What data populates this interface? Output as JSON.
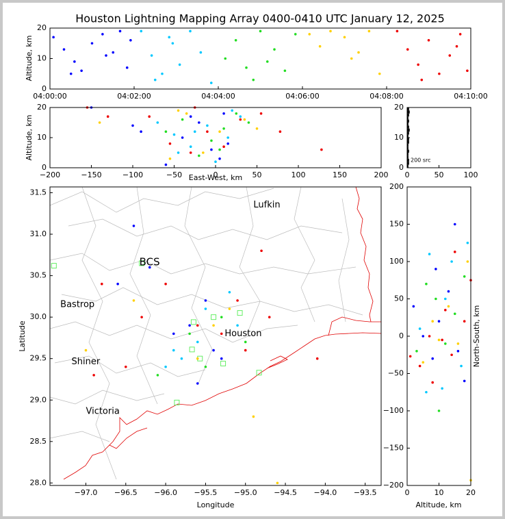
{
  "title": "Houston Lightning Mapping Array 0400-0410 UTC January 12, 2025",
  "chart_data": [
    {
      "type": "scatter",
      "ylabel": "Altitude, km",
      "xlim": [
        0,
        600
      ],
      "ylim": [
        0,
        20
      ],
      "xticks": [
        {
          "value": 0,
          "label": "04:00:00"
        },
        {
          "value": 120,
          "label": "04:02:00"
        },
        {
          "value": 240,
          "label": "04:04:00"
        },
        {
          "value": 360,
          "label": "04:06:00"
        },
        {
          "value": 480,
          "label": "04:08:00"
        },
        {
          "value": 600,
          "label": "04:10:00"
        }
      ],
      "yticks": [
        0,
        10,
        20
      ],
      "series": [
        {
          "color": "#0000ff",
          "x": [
            5,
            20,
            35,
            45,
            60,
            75,
            90,
            100,
            110,
            115,
            30,
            80
          ],
          "values": [
            17,
            13,
            9,
            6,
            15,
            18,
            12,
            19,
            7,
            16,
            5,
            11
          ]
        },
        {
          "color": "#00c8ff",
          "x": [
            130,
            145,
            160,
            175,
            185,
            200,
            215,
            230,
            150,
            170
          ],
          "values": [
            19,
            11,
            5,
            15,
            8,
            19,
            12,
            2,
            3,
            17
          ]
        },
        {
          "color": "#22dd22",
          "x": [
            250,
            265,
            280,
            300,
            320,
            335,
            350,
            290,
            310
          ],
          "values": [
            10,
            16,
            7,
            19,
            13,
            6,
            18,
            3,
            9
          ]
        },
        {
          "color": "#ffd000",
          "x": [
            370,
            385,
            400,
            420,
            440,
            455,
            470,
            430
          ],
          "values": [
            18,
            14,
            19,
            17,
            12,
            19,
            5,
            10
          ]
        },
        {
          "color": "#ee0000",
          "x": [
            495,
            510,
            525,
            540,
            555,
            570,
            585,
            595,
            530,
            580
          ],
          "values": [
            19,
            13,
            8,
            16,
            5,
            11,
            18,
            6,
            3,
            14
          ]
        }
      ]
    },
    {
      "type": "scatter",
      "xlabel": "East-West, km",
      "ylabel": "Altitude, km",
      "xlim": [
        -200,
        200
      ],
      "ylim": [
        0,
        20
      ],
      "xticks": [
        {
          "value": -200,
          "label": "−200"
        },
        {
          "value": -150,
          "label": "−150"
        },
        {
          "value": -100,
          "label": "−100"
        },
        {
          "value": -50,
          "label": "−50"
        },
        0,
        50,
        100,
        150,
        200
      ],
      "yticks": [
        0,
        10,
        20
      ],
      "series": [
        {
          "color": "#0000ff",
          "x": [
            -100,
            -90,
            -60,
            -40,
            -20,
            -5,
            10,
            -150,
            -30,
            5,
            15
          ],
          "values": [
            14,
            12,
            1,
            10,
            15,
            6,
            18,
            20,
            17,
            3,
            8
          ]
        },
        {
          "color": "#00c8ff",
          "x": [
            -50,
            -30,
            -10,
            0,
            20,
            30,
            -70,
            -45,
            15,
            -25
          ],
          "values": [
            11,
            7,
            14,
            2,
            19,
            17,
            15,
            5,
            10,
            12
          ]
        },
        {
          "color": "#22dd22",
          "x": [
            -40,
            -20,
            -5,
            10,
            25,
            -60,
            40,
            5
          ],
          "values": [
            16,
            4,
            9,
            13,
            18,
            12,
            15,
            6
          ]
        },
        {
          "color": "#ffd000",
          "x": [
            -45,
            -35,
            -15,
            5,
            35,
            50,
            -140,
            -55
          ],
          "values": [
            19,
            18,
            5,
            12,
            16,
            13,
            15,
            3
          ]
        },
        {
          "color": "#ee0000",
          "x": [
            -155,
            -130,
            -80,
            -55,
            -30,
            -10,
            10,
            30,
            55,
            78,
            128,
            -25
          ],
          "values": [
            20,
            17,
            17,
            8,
            5,
            12,
            7,
            16,
            18,
            12,
            6,
            20
          ]
        }
      ]
    },
    {
      "type": "histogram",
      "annotation": "200 src",
      "xlim": [
        0,
        100
      ],
      "ylim": [
        0,
        20
      ],
      "xticks": [
        0,
        50,
        100
      ],
      "yticks": [
        0,
        10,
        20
      ],
      "bins": [
        0,
        1,
        2,
        3,
        4,
        5,
        6,
        7,
        8,
        9,
        10,
        11,
        12,
        13,
        14,
        15,
        16,
        17,
        18,
        19,
        20
      ],
      "values": [
        2,
        3,
        3,
        2,
        2,
        3,
        2,
        2,
        3,
        3,
        2,
        3,
        4,
        3,
        2,
        3,
        2,
        3,
        4,
        3
      ],
      "color": "#000000"
    },
    {
      "type": "map",
      "xlabel": "Longitude",
      "ylabel": "Latitude",
      "xlim": [
        -97.45,
        -93.3
      ],
      "ylim": [
        27.97,
        31.57
      ],
      "xticks": [
        {
          "value": -97,
          "label": "−97.0"
        },
        {
          "value": -96.5,
          "label": "−96.5"
        },
        {
          "value": -96,
          "label": "−96.0"
        },
        {
          "value": -95.5,
          "label": "−95.5"
        },
        {
          "value": -95,
          "label": "−95.0"
        },
        {
          "value": -94.5,
          "label": "−94.5"
        },
        {
          "value": -94,
          "label": "−94.0"
        },
        {
          "value": -93.5,
          "label": "−93.5"
        }
      ],
      "yticks": [
        {
          "value": 28,
          "label": "28.0"
        },
        28.5,
        {
          "value": 29,
          "label": "29.0"
        },
        29.5,
        {
          "value": 30,
          "label": "30.0"
        },
        30.5,
        {
          "value": 31,
          "label": "31.0"
        },
        31.5
      ],
      "cities": [
        {
          "name": "Lufkin",
          "x": -94.9,
          "y": 31.35,
          "color": "#000000"
        },
        {
          "name": "BCS",
          "x": -96.33,
          "y": 30.66,
          "color": "#222222"
        },
        {
          "name": "Bastrop",
          "x": -97.32,
          "y": 30.15,
          "color": "#000000"
        },
        {
          "name": "Houston",
          "x": -95.26,
          "y": 29.8,
          "color": "#e8a33a"
        },
        {
          "name": "Shiner",
          "x": -97.18,
          "y": 29.46,
          "color": "#000000"
        },
        {
          "name": "Victoria",
          "x": -97.0,
          "y": 28.86,
          "color": "#000000"
        }
      ],
      "stations": {
        "color": "#66ee66",
        "x": [
          -97.4,
          -96.3,
          -95.65,
          -95.67,
          -95.4,
          -95.07,
          -95.57,
          -95.28,
          -94.83,
          -95.86
        ],
        "values": [
          30.62,
          30.65,
          29.94,
          29.61,
          30.0,
          30.05,
          29.5,
          29.44,
          29.33,
          28.97
        ]
      },
      "series": [
        {
          "color": "#0000ff",
          "x": [
            -95.7,
            -95.4,
            -95.5,
            -96.6,
            -96.2,
            -95.9,
            -95.3,
            -96.4,
            -95.6
          ],
          "values": [
            29.9,
            29.6,
            30.2,
            30.4,
            30.6,
            29.8,
            29.5,
            31.1,
            29.2
          ]
        },
        {
          "color": "#00c8ff",
          "x": [
            -95.5,
            -95.8,
            -95.2,
            -96.0,
            -95.6,
            -95.1,
            -95.9
          ],
          "values": [
            30.1,
            29.5,
            30.3,
            29.4,
            29.7,
            29.9,
            29.6
          ]
        },
        {
          "color": "#22dd22",
          "x": [
            -95.3,
            -95.7,
            -95.5,
            -96.1,
            -95.0
          ],
          "values": [
            30.0,
            29.8,
            29.4,
            29.3,
            29.7
          ]
        },
        {
          "color": "#ffd000",
          "x": [
            -95.4,
            -96.4,
            -94.9,
            -94.6,
            -97.0,
            -95.2,
            -95.6
          ],
          "values": [
            29.9,
            30.2,
            28.8,
            28.0,
            29.6,
            30.1,
            29.5
          ]
        },
        {
          "color": "#ee0000",
          "x": [
            -96.8,
            -96.3,
            -96.0,
            -95.6,
            -95.3,
            -95.1,
            -94.7,
            -94.1,
            -96.9,
            -95.0,
            -94.8,
            -96.5
          ],
          "values": [
            30.4,
            30.0,
            30.4,
            29.9,
            29.8,
            30.2,
            30.0,
            29.5,
            29.3,
            29.6,
            30.8,
            29.4
          ]
        }
      ]
    },
    {
      "type": "scatter",
      "xlabel": "Altitude, km",
      "ylabel": "North-South, km",
      "xlim": [
        0,
        20
      ],
      "ylim": [
        -200,
        200
      ],
      "xticks": [
        0,
        10,
        20
      ],
      "yticks": [
        {
          "value": -200,
          "label": "−200"
        },
        {
          "value": -150,
          "label": "−150"
        },
        {
          "value": -100,
          "label": "−100"
        },
        {
          "value": -50,
          "label": "−50"
        },
        0,
        50,
        100,
        150,
        200
      ],
      "series": [
        {
          "color": "#0000ff",
          "x": [
            2,
            5,
            8,
            10,
            13,
            16,
            18,
            15,
            9
          ],
          "values": [
            40,
            0,
            -30,
            20,
            60,
            -20,
            -60,
            150,
            90
          ]
        },
        {
          "color": "#00c8ff",
          "x": [
            4,
            7,
            11,
            14,
            17,
            19,
            12,
            6
          ],
          "values": [
            10,
            110,
            -70,
            100,
            -40,
            125,
            50,
            -75
          ]
        },
        {
          "color": "#22dd22",
          "x": [
            3,
            9,
            12,
            15,
            18,
            10,
            6
          ],
          "values": [
            -20,
            50,
            -10,
            30,
            80,
            -100,
            70
          ]
        },
        {
          "color": "#ffd000",
          "x": [
            5,
            10,
            13,
            16,
            19,
            8,
            20
          ],
          "values": [
            -35,
            -5,
            40,
            -10,
            100,
            20,
            -193
          ]
        },
        {
          "color": "#ee0000",
          "x": [
            1,
            4,
            8,
            12,
            15,
            18,
            20,
            11,
            14,
            7
          ],
          "values": [
            -27,
            -40,
            -62,
            35,
            113,
            20,
            75,
            -5,
            -25,
            0
          ]
        }
      ]
    }
  ]
}
